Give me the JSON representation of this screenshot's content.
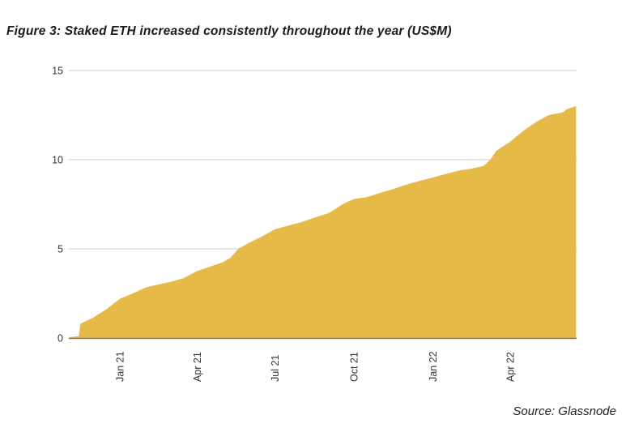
{
  "figure": {
    "title": "Figure 3: Staked ETH increased consistently throughout the year (US$M)",
    "source": "Source: Glassnode"
  },
  "chart_data": {
    "type": "area",
    "title": "Figure 3: Staked ETH increased consistently throughout the year (US$M)",
    "xlabel": "",
    "ylabel": "",
    "ylim": [
      0,
      15
    ],
    "xlim": [
      "2020-11-01",
      "2022-06-17"
    ],
    "grid": "horizontal",
    "legend": "none",
    "y_ticks": [
      0,
      5,
      10,
      15
    ],
    "x_ticks": [
      {
        "label": "Jan 21",
        "date": "2021-01-01"
      },
      {
        "label": "Apr 21",
        "date": "2021-04-01"
      },
      {
        "label": "Jul 21",
        "date": "2021-07-01"
      },
      {
        "label": "Oct 21",
        "date": "2021-10-01"
      },
      {
        "label": "Jan 22",
        "date": "2022-01-01"
      },
      {
        "label": "Apr 22",
        "date": "2022-04-01"
      }
    ],
    "series": [
      {
        "name": "Staked ETH",
        "points": [
          [
            "2020-11-03",
            0.05
          ],
          [
            "2020-11-14",
            0.1
          ],
          [
            "2020-11-16",
            0.8
          ],
          [
            "2020-12-01",
            1.15
          ],
          [
            "2020-12-16",
            1.6
          ],
          [
            "2021-01-01",
            2.2
          ],
          [
            "2021-01-16",
            2.5
          ],
          [
            "2021-02-01",
            2.85
          ],
          [
            "2021-02-15",
            3.0
          ],
          [
            "2021-03-01",
            3.15
          ],
          [
            "2021-03-16",
            3.35
          ],
          [
            "2021-04-01",
            3.75
          ],
          [
            "2021-04-16",
            4.0
          ],
          [
            "2021-05-01",
            4.25
          ],
          [
            "2021-05-10",
            4.5
          ],
          [
            "2021-05-19",
            5.0
          ],
          [
            "2021-06-01",
            5.35
          ],
          [
            "2021-06-16",
            5.7
          ],
          [
            "2021-07-01",
            6.1
          ],
          [
            "2021-07-16",
            6.3
          ],
          [
            "2021-08-01",
            6.5
          ],
          [
            "2021-08-16",
            6.75
          ],
          [
            "2021-09-01",
            7.0
          ],
          [
            "2021-09-05",
            7.1
          ],
          [
            "2021-09-16",
            7.45
          ],
          [
            "2021-09-22",
            7.6
          ],
          [
            "2021-10-01",
            7.8
          ],
          [
            "2021-10-16",
            7.9
          ],
          [
            "2021-11-01",
            8.15
          ],
          [
            "2021-11-16",
            8.35
          ],
          [
            "2021-12-01",
            8.6
          ],
          [
            "2021-12-16",
            8.8
          ],
          [
            "2022-01-01",
            9.0
          ],
          [
            "2022-01-16",
            9.2
          ],
          [
            "2022-02-01",
            9.4
          ],
          [
            "2022-02-15",
            9.5
          ],
          [
            "2022-03-01",
            9.65
          ],
          [
            "2022-03-09",
            10.0
          ],
          [
            "2022-03-16",
            10.5
          ],
          [
            "2022-04-01",
            11.0
          ],
          [
            "2022-04-16",
            11.6
          ],
          [
            "2022-05-01",
            12.1
          ],
          [
            "2022-05-16",
            12.5
          ],
          [
            "2022-06-01",
            12.65
          ],
          [
            "2022-06-07",
            12.85
          ],
          [
            "2022-06-17",
            13.0
          ]
        ]
      }
    ],
    "colors": {
      "area_fill": "#E5BA47",
      "grid_line": "#DCDCDC",
      "axis_line": "#7A7A7A",
      "tick_text": "#333333",
      "title_text": "#1A1A1A"
    }
  }
}
